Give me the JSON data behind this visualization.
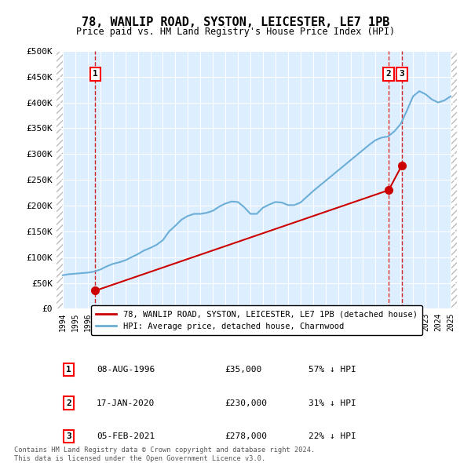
{
  "title": "78, WANLIP ROAD, SYSTON, LEICESTER, LE7 1PB",
  "subtitle": "Price paid vs. HM Land Registry's House Price Index (HPI)",
  "ylim": [
    0,
    500000
  ],
  "yticks": [
    0,
    50000,
    100000,
    150000,
    200000,
    250000,
    300000,
    350000,
    400000,
    450000,
    500000
  ],
  "ytick_labels": [
    "£0",
    "£50K",
    "£100K",
    "£150K",
    "£200K",
    "£250K",
    "£300K",
    "£350K",
    "£400K",
    "£450K",
    "£500K"
  ],
  "xlim_start": 1993.5,
  "xlim_end": 2025.5,
  "hpi_color": "#6baed6",
  "price_color": "#cc0000",
  "grid_bg": "#ddeeff",
  "legend_label_red": "78, WANLIP ROAD, SYSTON, LEICESTER, LE7 1PB (detached house)",
  "legend_label_blue": "HPI: Average price, detached house, Charnwood",
  "transactions": [
    {
      "label": "1",
      "date": "08-AUG-1996",
      "year": 1996.6,
      "price": 35000,
      "pct": "57% ↓ HPI"
    },
    {
      "label": "2",
      "date": "17-JAN-2020",
      "year": 2020.05,
      "price": 230000,
      "pct": "31% ↓ HPI"
    },
    {
      "label": "3",
      "date": "05-FEB-2021",
      "year": 2021.1,
      "price": 278000,
      "pct": "22% ↓ HPI"
    }
  ],
  "footer": "Contains HM Land Registry data © Crown copyright and database right 2024.\nThis data is licensed under the Open Government Licence v3.0.",
  "hpi_data": {
    "years": [
      1994.0,
      1994.5,
      1995.0,
      1995.5,
      1996.0,
      1996.5,
      1997.0,
      1997.5,
      1998.0,
      1998.5,
      1999.0,
      1999.5,
      2000.0,
      2000.5,
      2001.0,
      2001.5,
      2002.0,
      2002.5,
      2003.0,
      2003.5,
      2004.0,
      2004.5,
      2005.0,
      2005.5,
      2006.0,
      2006.5,
      2007.0,
      2007.5,
      2008.0,
      2008.5,
      2009.0,
      2009.5,
      2010.0,
      2010.5,
      2011.0,
      2011.5,
      2012.0,
      2012.5,
      2013.0,
      2013.5,
      2014.0,
      2014.5,
      2015.0,
      2015.5,
      2016.0,
      2016.5,
      2017.0,
      2017.5,
      2018.0,
      2018.5,
      2019.0,
      2019.5,
      2020.0,
      2020.5,
      2021.0,
      2021.5,
      2022.0,
      2022.5,
      2023.0,
      2023.5,
      2024.0,
      2024.5,
      2025.0
    ],
    "values": [
      65000,
      67000,
      68000,
      69000,
      70000,
      72000,
      76000,
      82000,
      87000,
      90000,
      94000,
      100000,
      106000,
      113000,
      118000,
      124000,
      133000,
      150000,
      161000,
      173000,
      180000,
      184000,
      184000,
      186000,
      190000,
      198000,
      204000,
      208000,
      207000,
      197000,
      184000,
      184000,
      196000,
      202000,
      207000,
      206000,
      201000,
      201000,
      206000,
      217000,
      228000,
      238000,
      248000,
      258000,
      268000,
      278000,
      288000,
      298000,
      308000,
      318000,
      327000,
      332000,
      334000,
      344000,
      358000,
      384000,
      412000,
      422000,
      416000,
      406000,
      400000,
      404000,
      412000
    ]
  },
  "price_data": {
    "years": [
      1996.6,
      2020.05,
      2021.1
    ],
    "values": [
      35000,
      230000,
      278000
    ]
  }
}
